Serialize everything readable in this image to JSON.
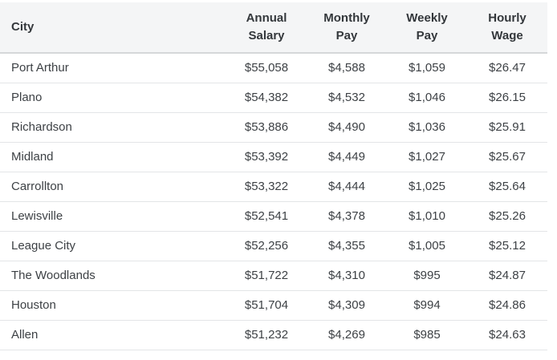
{
  "colors": {
    "header_background": "#f4f5f6",
    "header_text": "#33373b",
    "body_text": "#3d4145",
    "header_border": "#d5d7d9",
    "row_border": "#e3e5e7",
    "page_background": "#ffffff"
  },
  "table": {
    "headers": {
      "city": "City",
      "annual_salary": "Annual\nSalary",
      "monthly_pay": "Monthly\nPay",
      "weekly_pay": "Weekly\nPay",
      "hourly_wage": "Hourly\nWage"
    },
    "rows": [
      {
        "city": "Port Arthur",
        "annual_salary": "$55,058",
        "monthly_pay": "$4,588",
        "weekly_pay": "$1,059",
        "hourly_wage": "$26.47"
      },
      {
        "city": "Plano",
        "annual_salary": "$54,382",
        "monthly_pay": "$4,532",
        "weekly_pay": "$1,046",
        "hourly_wage": "$26.15"
      },
      {
        "city": "Richardson",
        "annual_salary": "$53,886",
        "monthly_pay": "$4,490",
        "weekly_pay": "$1,036",
        "hourly_wage": "$25.91"
      },
      {
        "city": "Midland",
        "annual_salary": "$53,392",
        "monthly_pay": "$4,449",
        "weekly_pay": "$1,027",
        "hourly_wage": "$25.67"
      },
      {
        "city": "Carrollton",
        "annual_salary": "$53,322",
        "monthly_pay": "$4,444",
        "weekly_pay": "$1,025",
        "hourly_wage": "$25.64"
      },
      {
        "city": "Lewisville",
        "annual_salary": "$52,541",
        "monthly_pay": "$4,378",
        "weekly_pay": "$1,010",
        "hourly_wage": "$25.26"
      },
      {
        "city": "League City",
        "annual_salary": "$52,256",
        "monthly_pay": "$4,355",
        "weekly_pay": "$1,005",
        "hourly_wage": "$25.12"
      },
      {
        "city": "The Woodlands",
        "annual_salary": "$51,722",
        "monthly_pay": "$4,310",
        "weekly_pay": "$995",
        "hourly_wage": "$24.87"
      },
      {
        "city": "Houston",
        "annual_salary": "$51,704",
        "monthly_pay": "$4,309",
        "weekly_pay": "$994",
        "hourly_wage": "$24.86"
      },
      {
        "city": "Allen",
        "annual_salary": "$51,232",
        "monthly_pay": "$4,269",
        "weekly_pay": "$985",
        "hourly_wage": "$24.63"
      }
    ]
  },
  "chart_data": {
    "type": "table",
    "title": "",
    "columns": [
      "City",
      "Annual Salary",
      "Monthly Pay",
      "Weekly Pay",
      "Hourly Wage"
    ],
    "rows": [
      [
        "Port Arthur",
        "$55,058",
        "$4,588",
        "$1,059",
        "$26.47"
      ],
      [
        "Plano",
        "$54,382",
        "$4,532",
        "$1,046",
        "$26.15"
      ],
      [
        "Richardson",
        "$53,886",
        "$4,490",
        "$1,036",
        "$25.91"
      ],
      [
        "Midland",
        "$53,392",
        "$4,449",
        "$1,027",
        "$25.67"
      ],
      [
        "Carrollton",
        "$53,322",
        "$4,444",
        "$1,025",
        "$25.64"
      ],
      [
        "Lewisville",
        "$52,541",
        "$4,378",
        "$1,010",
        "$25.26"
      ],
      [
        "League City",
        "$52,256",
        "$4,355",
        "$1,005",
        "$25.12"
      ],
      [
        "The Woodlands",
        "$51,722",
        "$4,310",
        "$995",
        "$24.87"
      ],
      [
        "Houston",
        "$51,704",
        "$4,309",
        "$994",
        "$24.86"
      ],
      [
        "Allen",
        "$51,232",
        "$4,269",
        "$985",
        "$24.63"
      ]
    ]
  }
}
